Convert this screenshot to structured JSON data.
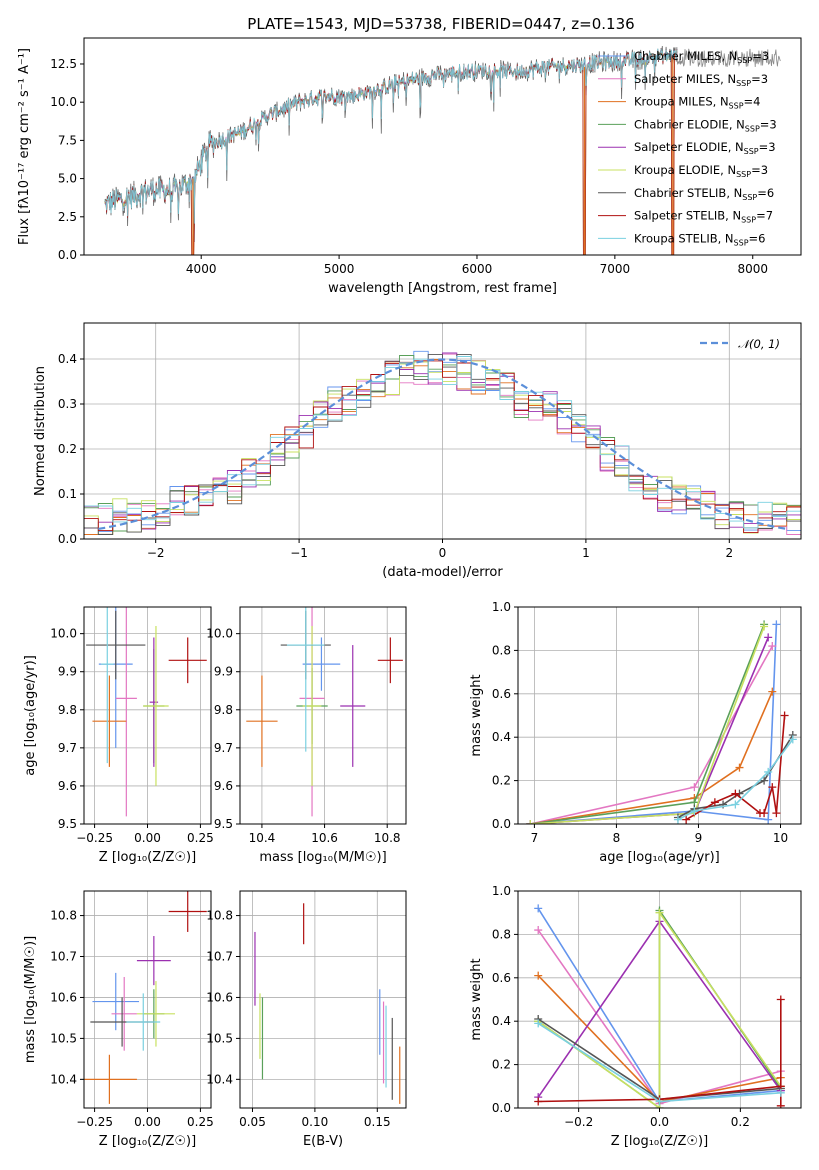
{
  "title": "PLATE=1543, MJD=53738, FIBERID=0447, z=0.136",
  "colors": {
    "Chabrier MILES": "#6495ed",
    "Salpeter MILES": "#e377c2",
    "Kroupa MILES": "#e07020",
    "Chabrier ELODIE": "#5aa05a",
    "Salpeter ELODIE": "#9b30b0",
    "Kroupa ELODIE": "#c8e060",
    "Chabrier STELIB": "#555555",
    "Salpeter STELIB": "#b01010",
    "Kroupa STELIB": "#7ad0e0"
  },
  "chart_data": [
    {
      "type": "line",
      "id": "spectrum",
      "xlabel": "wavelength [Angstrom, rest frame]",
      "ylabel": "Flux [fλ10⁻¹⁷ erg cm⁻² s⁻¹ A⁻¹]",
      "xlim": [
        3150,
        8350
      ],
      "ylim": [
        0,
        14.2
      ],
      "xticks": [
        4000,
        5000,
        6000,
        7000,
        8000
      ],
      "xtick_labels": [
        "4000",
        "5000",
        "6000",
        "7000",
        "8000"
      ],
      "yticks": [
        0,
        2.5,
        5,
        7.5,
        10,
        12.5
      ],
      "ytick_labels": [
        "0.0",
        "2.5",
        "5.0",
        "7.5",
        "10.0",
        "12.5"
      ],
      "legend": [
        {
          "name": "Chabrier MILES",
          "label": "Chabrier MILES, N",
          "sub": "SSP",
          "tail": "=3"
        },
        {
          "name": "Salpeter MILES",
          "label": "Salpeter MILES, N",
          "sub": "SSP",
          "tail": "=3"
        },
        {
          "name": "Kroupa MILES",
          "label": "Kroupa MILES, N",
          "sub": "SSP",
          "tail": "=4"
        },
        {
          "name": "Chabrier ELODIE",
          "label": "Chabrier ELODIE, N",
          "sub": "SSP",
          "tail": "=3"
        },
        {
          "name": "Salpeter ELODIE",
          "label": "Salpeter ELODIE, N",
          "sub": "SSP",
          "tail": "=3"
        },
        {
          "name": "Kroupa ELODIE",
          "label": "Kroupa ELODIE, N",
          "sub": "SSP",
          "tail": "=3"
        },
        {
          "name": "Chabrier STELIB",
          "label": "Chabrier STELIB, N",
          "sub": "SSP",
          "tail": "=6"
        },
        {
          "name": "Salpeter STELIB",
          "label": "Salpeter STELIB, N",
          "sub": "SSP",
          "tail": "=7"
        },
        {
          "name": "Kroupa STELIB",
          "label": "Kroupa STELIB, N",
          "sub": "SSP",
          "tail": "=6"
        }
      ],
      "continuum": [
        [
          3300,
          3.3
        ],
        [
          3500,
          3.9
        ],
        [
          3650,
          4.3
        ],
        [
          3800,
          4.2
        ],
        [
          3950,
          5.0
        ],
        [
          4050,
          7.2
        ],
        [
          4300,
          8.1
        ],
        [
          4500,
          9.2
        ],
        [
          4700,
          10.0
        ],
        [
          4900,
          10.4
        ],
        [
          5100,
          10.4
        ],
        [
          5300,
          10.9
        ],
        [
          5500,
          11.4
        ],
        [
          5700,
          11.8
        ],
        [
          5900,
          12.0
        ],
        [
          6100,
          12.1
        ],
        [
          6300,
          12.0
        ],
        [
          6500,
          12.3
        ],
        [
          6700,
          12.4
        ],
        [
          6900,
          12.6
        ],
        [
          7100,
          12.7
        ],
        [
          7300,
          13.0
        ],
        [
          7450,
          13.1
        ]
      ],
      "gaps": [
        [
          3930,
          3950,
          5.0
        ],
        [
          6770,
          6790,
          12.3
        ],
        [
          7410,
          7430,
          13.0
        ]
      ],
      "noise_source": [
        8000,
        8200,
        12.9
      ]
    },
    {
      "type": "bar",
      "id": "residual-hist",
      "xlabel": "(data-model)/error",
      "ylabel": "Normed distribution",
      "xlim": [
        -2.5,
        2.5
      ],
      "ylim": [
        0,
        0.48
      ],
      "xticks": [
        -2,
        -1,
        0,
        1,
        2
      ],
      "xtick_labels": [
        "−2",
        "−1",
        "0",
        "1",
        "2"
      ],
      "yticks": [
        0,
        0.1,
        0.2,
        0.3,
        0.4
      ],
      "ytick_labels": [
        "0.0",
        "0.1",
        "0.2",
        "0.3",
        "0.4"
      ],
      "legend_text": "𝒩(0, 1)",
      "normal": {
        "mu": 0,
        "sigma": 1,
        "color": "#5b8fd9"
      },
      "bin_width": 0.1,
      "bin_start": -2.5,
      "envelope": [
        0.04,
        0.045,
        0.05,
        0.055,
        0.06,
        0.07,
        0.08,
        0.085,
        0.09,
        0.1,
        0.115,
        0.14,
        0.16,
        0.2,
        0.22,
        0.24,
        0.27,
        0.3,
        0.3,
        0.32,
        0.34,
        0.36,
        0.37,
        0.38,
        0.37,
        0.38,
        0.37,
        0.36,
        0.35,
        0.33,
        0.31,
        0.3,
        0.29,
        0.27,
        0.25,
        0.22,
        0.19,
        0.17,
        0.14,
        0.12,
        0.1,
        0.09,
        0.08,
        0.07,
        0.06,
        0.055,
        0.05,
        0.045,
        0.04,
        0.04
      ],
      "jitter": 0.04
    },
    {
      "type": "scatter",
      "id": "age-vs-metallicity",
      "xlabel": "Z [log₁₀(Z/Z☉)]",
      "ylabel": "age  [log₁₀(age/yr)]",
      "xlim": [
        -0.3,
        0.3
      ],
      "ylim": [
        9.5,
        10.07
      ],
      "xticks": [
        -0.25,
        0,
        0.25
      ],
      "xtick_labels": [
        "−0.25",
        "0.00",
        "0.25"
      ],
      "yticks": [
        9.5,
        9.6,
        9.7,
        9.8,
        9.9,
        10.0
      ],
      "ytick_labels": [
        "9.5",
        "9.6",
        "9.7",
        "9.8",
        "9.9",
        "10.0"
      ],
      "points": [
        {
          "name": "Chabrier MILES",
          "x": -0.15,
          "xerr": 0.08,
          "y": 9.92,
          "yerr": 0.22
        },
        {
          "name": "Salpeter MILES",
          "x": -0.1,
          "xerr": 0.05,
          "y": 9.83,
          "yerr": 0.31
        },
        {
          "name": "Kroupa MILES",
          "x": -0.18,
          "xerr": 0.08,
          "y": 9.77,
          "yerr": 0.12
        },
        {
          "name": "Chabrier ELODIE",
          "x": 0.03,
          "xerr": 0.05,
          "y": 9.81,
          "yerr": 0.15
        },
        {
          "name": "Salpeter ELODIE",
          "x": 0.03,
          "xerr": 0.02,
          "y": 9.82,
          "yerr": 0.17
        },
        {
          "name": "Kroupa ELODIE",
          "x": 0.04,
          "xerr": 0.06,
          "y": 9.81,
          "yerr": 0.21
        },
        {
          "name": "Chabrier STELIB",
          "x": -0.15,
          "xerr": 0.14,
          "y": 9.97,
          "yerr": 0.09
        },
        {
          "name": "Salpeter STELIB",
          "x": 0.19,
          "xerr": 0.09,
          "y": 9.93,
          "yerr": 0.06
        },
        {
          "name": "Kroupa STELIB",
          "x": -0.19,
          "xerr": 0.03,
          "y": 9.92,
          "yerr": 0.26
        }
      ]
    },
    {
      "type": "scatter",
      "id": "age-vs-mass",
      "xlabel": "mass [log₁₀(M/M☉)]",
      "ylabel": "",
      "xlim": [
        10.33,
        10.86
      ],
      "ylim": [
        9.5,
        10.07
      ],
      "xticks": [
        10.4,
        10.6,
        10.8
      ],
      "xtick_labels": [
        "10.4",
        "10.6",
        "10.8"
      ],
      "yticks": [
        9.5,
        9.6,
        9.7,
        9.8,
        9.9,
        10.0
      ],
      "ytick_labels": [
        "9.5",
        "9.6",
        "9.7",
        "9.8",
        "9.9",
        "10.0"
      ],
      "points": [
        {
          "name": "Chabrier MILES",
          "x": 10.59,
          "xerr": 0.06,
          "y": 9.92,
          "yerr": 0.07
        },
        {
          "name": "Salpeter MILES",
          "x": 10.56,
          "xerr": 0.04,
          "y": 9.83,
          "yerr": 0.31
        },
        {
          "name": "Kroupa MILES",
          "x": 10.4,
          "xerr": 0.05,
          "y": 9.77,
          "yerr": 0.12
        },
        {
          "name": "Chabrier ELODIE",
          "x": 10.56,
          "xerr": 0.05,
          "y": 9.81,
          "yerr": 0.1
        },
        {
          "name": "Salpeter ELODIE",
          "x": 10.69,
          "xerr": 0.04,
          "y": 9.81,
          "yerr": 0.16
        },
        {
          "name": "Kroupa ELODIE",
          "x": 10.56,
          "xerr": 0.03,
          "y": 9.81,
          "yerr": 0.21
        },
        {
          "name": "Chabrier STELIB",
          "x": 10.54,
          "xerr": 0.08,
          "y": 9.97,
          "yerr": 0.09
        },
        {
          "name": "Salpeter STELIB",
          "x": 10.81,
          "xerr": 0.04,
          "y": 9.93,
          "yerr": 0.06
        },
        {
          "name": "Kroupa STELIB",
          "x": 10.54,
          "xerr": 0.06,
          "y": 9.97,
          "yerr": 0.28
        }
      ]
    },
    {
      "type": "line",
      "id": "mass-weight-vs-age",
      "xlabel": "age  [log₁₀(age/yr)]",
      "ylabel": "mass weight",
      "xlim": [
        6.8,
        10.25
      ],
      "ylim": [
        0,
        1.0
      ],
      "xticks": [
        7,
        8,
        9,
        10
      ],
      "xtick_labels": [
        "7",
        "8",
        "9",
        "10"
      ],
      "yticks": [
        0,
        0.2,
        0.4,
        0.6,
        0.8,
        1.0
      ],
      "ytick_labels": [
        "0.0",
        "0.2",
        "0.4",
        "0.6",
        "0.8",
        "1.0"
      ],
      "series": [
        {
          "name": "Chabrier MILES",
          "x": [
            6.95,
            8.95,
            9.85,
            9.95
          ],
          "y": [
            0.0,
            0.06,
            0.02,
            0.92
          ]
        },
        {
          "name": "Salpeter MILES",
          "x": [
            6.95,
            8.95,
            9.9
          ],
          "y": [
            0.0,
            0.17,
            0.82
          ]
        },
        {
          "name": "Kroupa MILES",
          "x": [
            6.95,
            8.95,
            9.5,
            9.9
          ],
          "y": [
            0.0,
            0.12,
            0.26,
            0.61
          ]
        },
        {
          "name": "Chabrier ELODIE",
          "x": [
            6.95,
            8.95,
            9.8
          ],
          "y": [
            0.0,
            0.1,
            0.92
          ]
        },
        {
          "name": "Salpeter ELODIE",
          "x": [
            6.95,
            8.95,
            9.85
          ],
          "y": [
            0.0,
            0.05,
            0.86
          ]
        },
        {
          "name": "Kroupa ELODIE",
          "x": [
            6.95,
            8.95,
            9.8
          ],
          "y": [
            0.0,
            0.05,
            0.91
          ]
        },
        {
          "name": "Chabrier STELIB",
          "x": [
            8.75,
            8.95,
            9.3,
            9.5,
            9.8,
            10.15
          ],
          "y": [
            0.03,
            0.07,
            0.09,
            0.14,
            0.2,
            0.41
          ]
        },
        {
          "name": "Salpeter STELIB",
          "x": [
            8.85,
            9.2,
            9.45,
            9.75,
            9.8,
            9.9,
            9.95,
            10.05
          ],
          "y": [
            0.02,
            0.1,
            0.14,
            0.05,
            0.05,
            0.17,
            0.05,
            0.5
          ]
        },
        {
          "name": "Kroupa STELIB",
          "x": [
            8.75,
            8.95,
            9.45,
            9.85,
            10.15
          ],
          "y": [
            0.02,
            0.06,
            0.09,
            0.24,
            0.39
          ]
        }
      ]
    },
    {
      "type": "scatter",
      "id": "mass-vs-metallicity",
      "xlabel": "Z [log₁₀(Z/Z☉)]",
      "ylabel": "mass [log₁₀(M/M☉)]",
      "xlim": [
        -0.3,
        0.3
      ],
      "ylim": [
        10.33,
        10.86
      ],
      "xticks": [
        -0.25,
        0,
        0.25
      ],
      "xtick_labels": [
        "−0.25",
        "0.00",
        "0.25"
      ],
      "yticks": [
        10.4,
        10.5,
        10.6,
        10.7,
        10.8
      ],
      "ytick_labels": [
        "10.4",
        "10.5",
        "10.6",
        "10.7",
        "10.8"
      ],
      "points": [
        {
          "name": "Chabrier MILES",
          "x": -0.15,
          "xerr": 0.11,
          "y": 10.59,
          "yerr": 0.07
        },
        {
          "name": "Salpeter MILES",
          "x": -0.11,
          "xerr": 0.06,
          "y": 10.56,
          "yerr": 0.09
        },
        {
          "name": "Kroupa MILES",
          "x": -0.18,
          "xerr": 0.13,
          "y": 10.4,
          "yerr": 0.06
        },
        {
          "name": "Chabrier ELODIE",
          "x": 0.03,
          "xerr": 0.05,
          "y": 10.56,
          "yerr": 0.06
        },
        {
          "name": "Salpeter ELODIE",
          "x": 0.03,
          "xerr": 0.08,
          "y": 10.69,
          "yerr": 0.06
        },
        {
          "name": "Kroupa ELODIE",
          "x": 0.04,
          "xerr": 0.09,
          "y": 10.56,
          "yerr": 0.08
        },
        {
          "name": "Chabrier STELIB",
          "x": -0.12,
          "xerr": 0.15,
          "y": 10.54,
          "yerr": 0.06
        },
        {
          "name": "Salpeter STELIB",
          "x": 0.19,
          "xerr": 0.09,
          "y": 10.81,
          "yerr": 0.05
        },
        {
          "name": "Kroupa STELIB",
          "x": -0.02,
          "xerr": 0.08,
          "y": 10.54,
          "yerr": 0.07
        }
      ]
    },
    {
      "type": "scatter",
      "id": "mass-vs-ebv",
      "xlabel": "E(B-V)",
      "ylabel": "",
      "xlim": [
        0.04,
        0.173
      ],
      "ylim": [
        10.33,
        10.86
      ],
      "xticks": [
        0.05,
        0.1,
        0.15
      ],
      "xtick_labels": [
        "0.05",
        "0.10",
        "0.15"
      ],
      "yticks": [
        10.4,
        10.5,
        10.6,
        10.7,
        10.8
      ],
      "ytick_labels": [
        "10.4",
        "10.5",
        "10.6",
        "10.7",
        "10.8"
      ],
      "points": [
        {
          "name": "Chabrier MILES",
          "x": 0.152,
          "xerr": 0.0,
          "y": 10.54,
          "yerr": 0.08
        },
        {
          "name": "Salpeter MILES",
          "x": 0.155,
          "xerr": 0.0,
          "y": 10.49,
          "yerr": 0.1
        },
        {
          "name": "Kroupa MILES",
          "x": 0.168,
          "xerr": 0.0,
          "y": 10.41,
          "yerr": 0.07
        },
        {
          "name": "Chabrier ELODIE",
          "x": 0.058,
          "xerr": 0.0,
          "y": 10.5,
          "yerr": 0.1
        },
        {
          "name": "Salpeter ELODIE",
          "x": 0.052,
          "xerr": 0.0,
          "y": 10.67,
          "yerr": 0.09
        },
        {
          "name": "Kroupa ELODIE",
          "x": 0.056,
          "xerr": 0.0,
          "y": 10.53,
          "yerr": 0.08
        },
        {
          "name": "Chabrier STELIB",
          "x": 0.162,
          "xerr": 0.0,
          "y": 10.45,
          "yerr": 0.1
        },
        {
          "name": "Salpeter STELIB",
          "x": 0.091,
          "xerr": 0.0,
          "y": 10.78,
          "yerr": 0.05
        },
        {
          "name": "Kroupa STELIB",
          "x": 0.157,
          "xerr": 0.0,
          "y": 10.48,
          "yerr": 0.1
        }
      ]
    },
    {
      "type": "line",
      "id": "mass-weight-vs-metallicity",
      "xlabel": "Z [log₁₀(Z/Z☉)]",
      "ylabel": "mass weight",
      "xlim": [
        -0.35,
        0.35
      ],
      "ylim": [
        0,
        1.0
      ],
      "xticks": [
        -0.2,
        0,
        0.2
      ],
      "xtick_labels": [
        "−0.2",
        "0.0",
        "0.2"
      ],
      "yticks": [
        0,
        0.2,
        0.4,
        0.6,
        0.8,
        1.0
      ],
      "ytick_labels": [
        "0.0",
        "0.2",
        "0.4",
        "0.6",
        "0.8",
        "1.0"
      ],
      "series": [
        {
          "name": "Chabrier MILES",
          "x": [
            -0.3,
            0.0,
            0.3
          ],
          "y": [
            0.92,
            0.03,
            0.08
          ]
        },
        {
          "name": "Salpeter MILES",
          "x": [
            -0.3,
            0.0,
            0.3
          ],
          "y": [
            0.82,
            0.02,
            0.17
          ]
        },
        {
          "name": "Kroupa MILES",
          "x": [
            -0.3,
            0.0,
            0.3
          ],
          "y": [
            0.61,
            0.03,
            0.14
          ]
        },
        {
          "name": "Chabrier ELODIE",
          "x": [
            -0.3,
            0.0,
            0.0,
            0.3
          ],
          "y": [
            0.4,
            0.0,
            0.91,
            0.09
          ]
        },
        {
          "name": "Salpeter ELODIE",
          "x": [
            -0.3,
            0.0,
            0.3
          ],
          "y": [
            0.05,
            0.86,
            0.08
          ]
        },
        {
          "name": "Kroupa ELODIE",
          "x": [
            -0.3,
            0.0,
            0.0,
            0.3
          ],
          "y": [
            0.4,
            0.0,
            0.9,
            0.1
          ]
        },
        {
          "name": "Chabrier STELIB",
          "x": [
            -0.3,
            0.0,
            0.3
          ],
          "y": [
            0.41,
            0.04,
            0.09
          ]
        },
        {
          "name": "Salpeter STELIB",
          "x": [
            -0.3,
            0.0,
            0.3,
            0.3,
            0.3
          ],
          "y": [
            0.03,
            0.04,
            0.1,
            0.5,
            0.01
          ]
        },
        {
          "name": "Kroupa STELIB",
          "x": [
            -0.3,
            0.0,
            0.3
          ],
          "y": [
            0.39,
            0.03,
            0.07
          ]
        }
      ]
    }
  ]
}
